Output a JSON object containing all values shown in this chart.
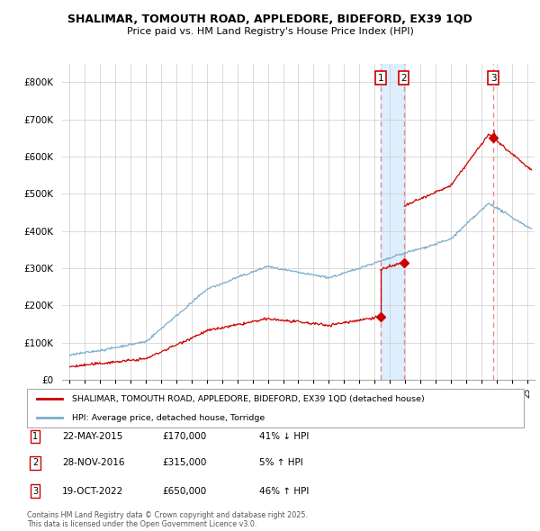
{
  "title": "SHALIMAR, TOMOUTH ROAD, APPLEDORE, BIDEFORD, EX39 1QD",
  "subtitle": "Price paid vs. HM Land Registry's House Price Index (HPI)",
  "xlim": [
    1994.5,
    2025.5
  ],
  "ylim": [
    0,
    850000
  ],
  "yticks": [
    0,
    100000,
    200000,
    300000,
    400000,
    500000,
    600000,
    700000,
    800000
  ],
  "ytick_labels": [
    "£0",
    "£100K",
    "£200K",
    "£300K",
    "£400K",
    "£500K",
    "£600K",
    "£700K",
    "£800K"
  ],
  "sale_dates": [
    2015.385,
    2016.91,
    2022.8
  ],
  "sale_prices": [
    170000,
    315000,
    650000
  ],
  "sale_labels": [
    "1",
    "2",
    "3"
  ],
  "red_line_color": "#cc0000",
  "blue_line_color": "#7aadce",
  "vline_color": "#ee8888",
  "shade_color": "#ddeeff",
  "sale_marker_color": "#cc0000",
  "legend_entries": [
    "SHALIMAR, TOMOUTH ROAD, APPLEDORE, BIDEFORD, EX39 1QD (detached house)",
    "HPI: Average price, detached house, Torridge"
  ],
  "table_entries": [
    {
      "label": "1",
      "date": "22-MAY-2015",
      "price": "£170,000",
      "hpi": "41% ↓ HPI"
    },
    {
      "label": "2",
      "date": "28-NOV-2016",
      "price": "£315,000",
      "hpi": "5% ↑ HPI"
    },
    {
      "label": "3",
      "date": "19-OCT-2022",
      "price": "£650,000",
      "hpi": "46% ↑ HPI"
    }
  ],
  "footnote": "Contains HM Land Registry data © Crown copyright and database right 2025.\nThis data is licensed under the Open Government Licence v3.0.",
  "background_color": "#ffffff",
  "grid_color": "#cccccc"
}
